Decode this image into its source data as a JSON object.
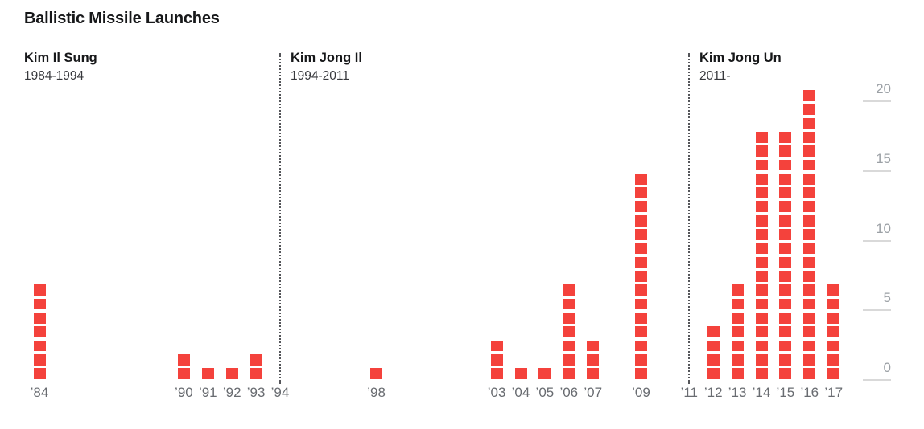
{
  "title": "Ballistic Missile Launches",
  "eras": [
    {
      "name": "Kim Il Sung",
      "years": "1984-1994"
    },
    {
      "name": "Kim Jong Il",
      "years": "1994-2011"
    },
    {
      "name": "Kim Jong Un",
      "years": "2011-"
    }
  ],
  "colors": {
    "square": "#f4423c",
    "title": "#17181a",
    "era_name": "#17181a",
    "era_years": "#38393d",
    "year_label": "#696c71",
    "axis_label": "#9ba0a5",
    "tick_line": "#d9d9d9",
    "divider": "#55565a",
    "background": "#ffffff"
  },
  "chart_data": {
    "type": "bar",
    "title": "Ballistic Missile Launches",
    "subtitle": "",
    "xlabel": "",
    "ylabel": "",
    "legend": "none",
    "grid": "right-side tick marks only",
    "style": "stacked unit squares, one square = one launch",
    "x": [
      1984,
      1990,
      1991,
      1992,
      1993,
      1998,
      2003,
      2004,
      2005,
      2006,
      2007,
      2009,
      2012,
      2013,
      2014,
      2015,
      2016,
      2017
    ],
    "tick_labels": [
      "’84",
      "’90",
      "’91",
      "’92",
      "’93",
      "’98",
      "’03",
      "’04",
      "’05",
      "’06",
      "’07",
      "’09",
      "’12",
      "’13",
      "’14",
      "’15",
      "’16",
      "’17"
    ],
    "values": [
      7,
      2,
      1,
      1,
      2,
      1,
      3,
      1,
      1,
      7,
      3,
      15,
      4,
      7,
      18,
      18,
      21,
      7
    ],
    "divider_years": [
      {
        "year": 1994,
        "label": "’94"
      },
      {
        "year": 2011,
        "label": "’11"
      }
    ],
    "yticks": [
      0,
      5,
      10,
      15,
      20
    ],
    "ytick_labels": [
      "0",
      "5",
      "10",
      "15",
      "20"
    ],
    "ylim": [
      0,
      21
    ]
  }
}
